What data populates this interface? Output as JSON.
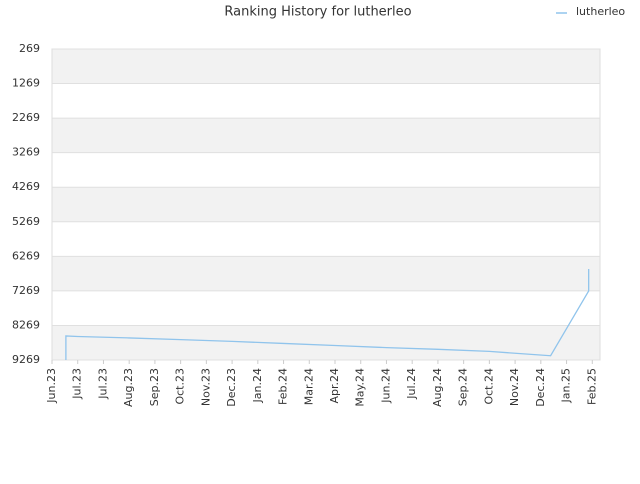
{
  "chart_data": {
    "type": "line",
    "title": "Ranking History for lutherleo",
    "series": [
      {
        "name": "lutherleo",
        "color": "#90c4ec",
        "x": [
          0.54,
          0.54,
          1,
          3,
          5,
          7,
          9,
          11,
          13,
          15,
          17,
          19.38,
          20.86,
          20.86
        ],
        "values": [
          9269,
          8574,
          8590,
          8630,
          8680,
          8730,
          8790,
          8850,
          8910,
          8960,
          9020,
          9146,
          7272,
          6636
        ]
      }
    ],
    "xlim": [
      0,
      21.3
    ],
    "xticks": [
      {
        "value": 0,
        "label": "Jun.23"
      },
      {
        "value": 1,
        "label": "Jul.23"
      },
      {
        "value": 2,
        "label": "Jul.23"
      },
      {
        "value": 3,
        "label": "Aug.23"
      },
      {
        "value": 4,
        "label": "Sep.23"
      },
      {
        "value": 5,
        "label": "Oct.23"
      },
      {
        "value": 6,
        "label": "Nov.23"
      },
      {
        "value": 7,
        "label": "Dec.23"
      },
      {
        "value": 8,
        "label": "Jan.24"
      },
      {
        "value": 9,
        "label": "Feb.24"
      },
      {
        "value": 10,
        "label": "Mar.24"
      },
      {
        "value": 11,
        "label": "Apr.24"
      },
      {
        "value": 12,
        "label": "May.24"
      },
      {
        "value": 13,
        "label": "Jun.24"
      },
      {
        "value": 14,
        "label": "Jul.24"
      },
      {
        "value": 15,
        "label": "Aug.24"
      },
      {
        "value": 16,
        "label": "Sep.24"
      },
      {
        "value": 17,
        "label": "Oct.24"
      },
      {
        "value": 18,
        "label": "Nov.24"
      },
      {
        "value": 19,
        "label": "Dec.24"
      },
      {
        "value": 20,
        "label": "Jan.25"
      },
      {
        "value": 21,
        "label": "Feb.25"
      }
    ],
    "ylim": [
      9269,
      269
    ],
    "yticks": [
      269,
      1269,
      2269,
      3269,
      4269,
      5269,
      6269,
      7269,
      8269,
      9269
    ],
    "grid": true,
    "legend": "top-right"
  }
}
